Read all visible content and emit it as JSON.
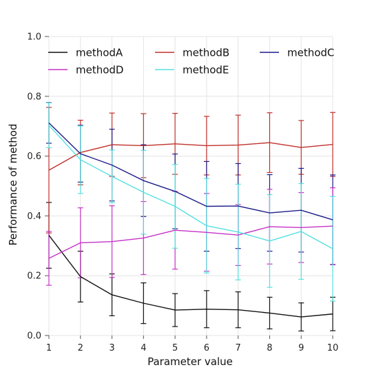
{
  "chart_data": {
    "type": "line",
    "xlabel": "Parameter value",
    "ylabel": "Performance of method",
    "x": [
      1,
      2,
      3,
      4,
      5,
      6,
      7,
      8,
      9,
      10
    ],
    "xlim": [
      1,
      10
    ],
    "ylim": [
      0.0,
      1.0
    ],
    "xticks": [
      "1",
      "2",
      "3",
      "4",
      "5",
      "6",
      "7",
      "8",
      "9",
      "10"
    ],
    "yticks": [
      "0.0",
      "0.2",
      "0.4",
      "0.6",
      "0.8",
      "1.0"
    ],
    "ytick_values": [
      0.0,
      0.2,
      0.4,
      0.6,
      0.8,
      1.0
    ],
    "grid": true,
    "legend_placement": "top",
    "error_bars": true,
    "series": [
      {
        "name": "methodA",
        "color": "#111111",
        "values": [
          0.335,
          0.197,
          0.136,
          0.108,
          0.085,
          0.088,
          0.086,
          0.075,
          0.062,
          0.072
        ],
        "errors": [
          0.11,
          0.085,
          0.07,
          0.068,
          0.055,
          0.062,
          0.06,
          0.053,
          0.047,
          0.056
        ]
      },
      {
        "name": "methodB",
        "color": "#c0302b",
        "values": [
          0.553,
          0.612,
          0.638,
          0.635,
          0.641,
          0.635,
          0.637,
          0.645,
          0.629,
          0.639
        ],
        "errors": [
          0.21,
          0.108,
          0.106,
          0.107,
          0.102,
          0.098,
          0.1,
          0.1,
          0.09,
          0.107
        ]
      },
      {
        "name": "methodC",
        "color": "#1c1c8a",
        "values": [
          0.711,
          0.608,
          0.57,
          0.518,
          0.482,
          0.432,
          0.433,
          0.41,
          0.419,
          0.387
        ],
        "errors": [
          0.068,
          0.095,
          0.12,
          0.12,
          0.125,
          0.15,
          0.142,
          0.128,
          0.14,
          0.15
        ]
      },
      {
        "name": "methodD",
        "color": "#c632c6",
        "values": [
          0.258,
          0.31,
          0.314,
          0.326,
          0.352,
          0.345,
          0.336,
          0.364,
          0.361,
          0.366
        ],
        "errors": [
          0.09,
          0.117,
          0.12,
          0.122,
          0.13,
          0.13,
          0.102,
          0.125,
          0.117,
          0.128
        ]
      },
      {
        "name": "methodE",
        "color": "#55e0e0",
        "values": [
          0.703,
          0.588,
          0.532,
          0.479,
          0.432,
          0.367,
          0.346,
          0.316,
          0.348,
          0.29
        ],
        "errors": [
          0.075,
          0.113,
          0.088,
          0.14,
          0.14,
          0.158,
          0.16,
          0.155,
          0.16,
          0.175
        ]
      }
    ]
  }
}
